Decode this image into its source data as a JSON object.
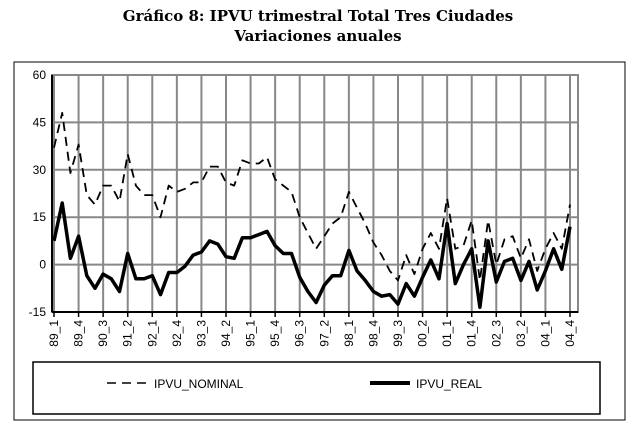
{
  "chart_data": {
    "type": "line",
    "title": "Gráfico 8: IPVU trimestral  Total Tres Ciudades",
    "subtitle": "Variaciones anuales",
    "xlabel": "",
    "ylabel": "",
    "ylim": [
      -15,
      60
    ],
    "yticks": [
      "60",
      "45",
      "30",
      "15",
      "0",
      "-15"
    ],
    "ytick_values": [
      60,
      45,
      30,
      15,
      0,
      -15
    ],
    "xtick_labels": [
      "89_1",
      "89_4",
      "90_3",
      "91_2",
      "92_1",
      "92_4",
      "93_3",
      "94_2",
      "95_1",
      "95_4",
      "96_3",
      "97_2",
      "98_1",
      "98_4",
      "99_3",
      "00_2",
      "01_1",
      "01_4",
      "02_3",
      "03_2",
      "04_1",
      "04_4"
    ],
    "grid": true,
    "legend_position": "bottom",
    "series": [
      {
        "name": "IPVU_NOMINAL",
        "style": "dashed",
        "values": [
          37,
          48,
          29,
          38,
          22,
          19,
          25,
          25,
          20,
          35,
          25,
          22,
          22,
          15,
          25,
          23,
          24,
          26,
          26,
          31,
          31,
          26,
          25,
          33,
          32,
          32,
          34,
          27,
          25,
          23,
          15,
          10,
          5,
          9,
          13,
          15,
          23,
          18,
          13,
          7,
          3,
          -2,
          -5,
          3,
          -3,
          5,
          10,
          5,
          21,
          5,
          6,
          14,
          -5,
          14,
          0,
          8,
          9,
          2,
          8,
          -2,
          5,
          10,
          5,
          19
        ]
      },
      {
        "name": "IPVU_REAL",
        "style": "solid",
        "values": [
          7.5,
          19.5,
          2,
          9,
          -3.5,
          -7.5,
          -3,
          -4.5,
          -8.5,
          3.5,
          -4.5,
          -4.5,
          -3.5,
          -9.5,
          -2.5,
          -2.5,
          -0.5,
          3,
          4,
          7.5,
          6.5,
          2.5,
          2,
          8.5,
          8.5,
          9.5,
          10.5,
          6,
          3.5,
          3.5,
          -4,
          -8.5,
          -12,
          -6.5,
          -3.5,
          -3.5,
          4.5,
          -2,
          -5,
          -8.5,
          -10,
          -9.5,
          -12.5,
          -6,
          -10,
          -4,
          1.5,
          -4.5,
          13,
          -6,
          0,
          5,
          -13.5,
          7.5,
          -5.5,
          1,
          2,
          -5,
          1,
          -8,
          -2,
          5,
          -1.5,
          12
        ]
      }
    ]
  }
}
